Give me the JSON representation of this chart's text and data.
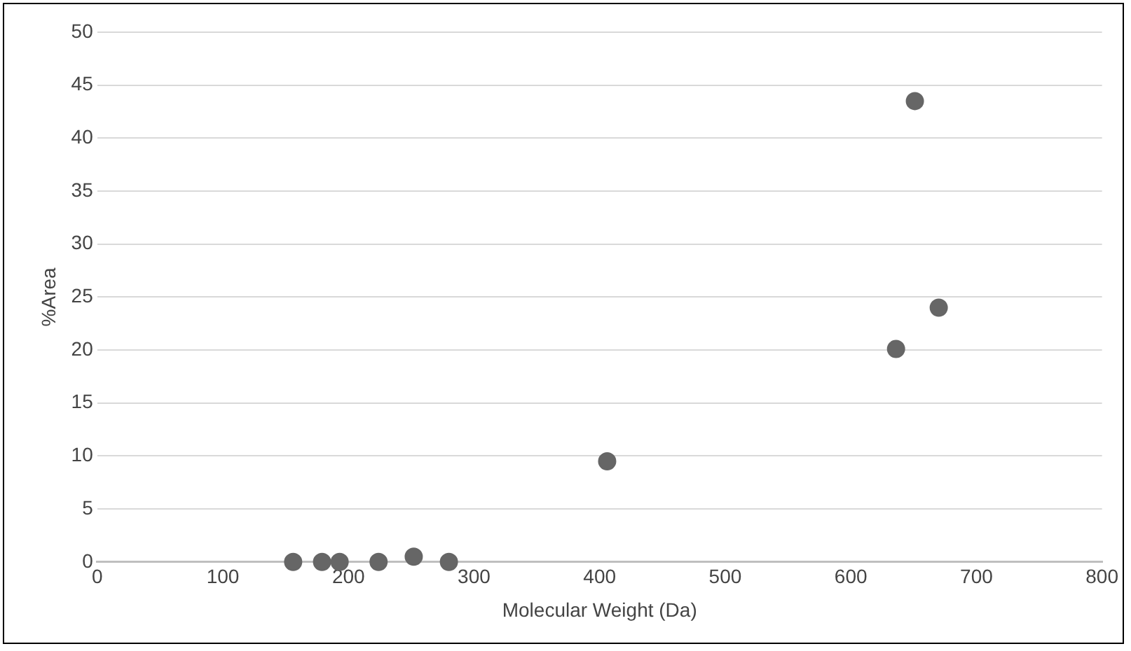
{
  "chart_data": {
    "type": "scatter",
    "xlabel": "Molecular Weight (Da)",
    "ylabel": "%Area",
    "x": [
      156,
      179,
      193,
      224,
      252,
      280,
      406,
      636,
      651,
      670
    ],
    "values": [
      0,
      0,
      0,
      0,
      0.5,
      0,
      9.5,
      20.1,
      43.5,
      24.0
    ],
    "color": "#666666",
    "marker": "circle",
    "xlim": [
      0,
      800
    ],
    "xticks": [
      0,
      100,
      200,
      300,
      400,
      500,
      600,
      700,
      800
    ],
    "ylim": [
      0,
      50
    ],
    "yticks": [
      0,
      5,
      10,
      15,
      20,
      25,
      30,
      35,
      40,
      45,
      50
    ],
    "grid": "y",
    "legend": false
  }
}
